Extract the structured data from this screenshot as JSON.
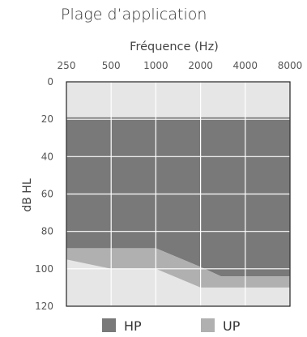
{
  "title": "Plage d’application",
  "chart_data": {
    "type": "area",
    "xlabel": "Fréquence (Hz)",
    "ylabel": "dB HL",
    "x_ticks": [
      "250",
      "500",
      "1000",
      "2000",
      "4000",
      "8000"
    ],
    "y_ticks": [
      0,
      20,
      40,
      60,
      80,
      100,
      120
    ],
    "ylim": [
      0,
      120
    ],
    "x_axis_position": "top",
    "y_inverted": true,
    "grid": true,
    "legend": "bottom",
    "series": [
      {
        "name": "HP",
        "color": "#797979",
        "upper": [
          [
            250,
            19
          ],
          [
            8000,
            19
          ]
        ],
        "lower": [
          [
            250,
            89
          ],
          [
            1000,
            89
          ],
          [
            2000,
            99
          ],
          [
            2750,
            104
          ],
          [
            8000,
            104
          ]
        ]
      },
      {
        "name": "UP",
        "color": "#b0b0b0",
        "upper": [
          [
            250,
            89
          ],
          [
            1000,
            89
          ],
          [
            2000,
            99
          ],
          [
            2750,
            104
          ],
          [
            8000,
            104
          ]
        ],
        "lower": [
          [
            250,
            95
          ],
          [
            500,
            100
          ],
          [
            1000,
            100
          ],
          [
            2000,
            110
          ],
          [
            8000,
            110
          ]
        ]
      }
    ],
    "background_color": "#e6e6e6"
  }
}
